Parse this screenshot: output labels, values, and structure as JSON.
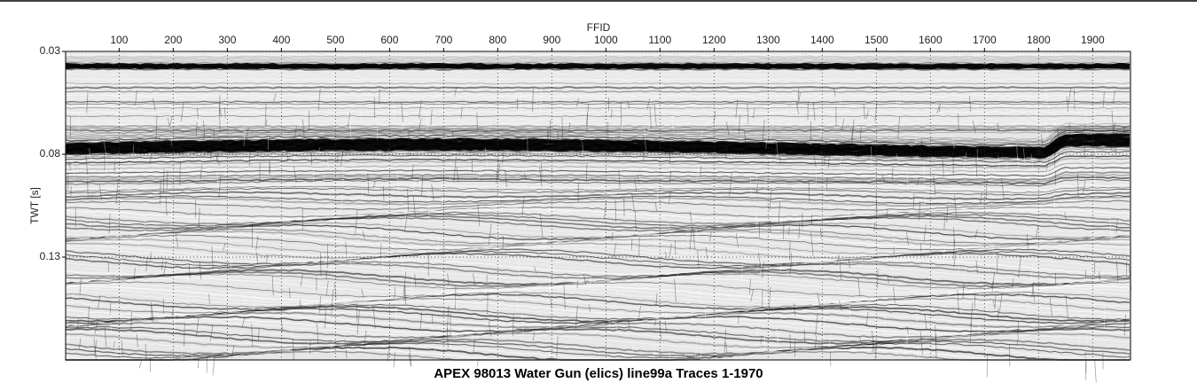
{
  "chart_data": {
    "type": "seismic",
    "title": "APEX 98013 Water Gun (elics) line99a Traces 1-1970",
    "x_label": "FFID",
    "y_label": "TWT [s]",
    "xlim": [
      1,
      1970
    ],
    "xticks": [
      100,
      200,
      300,
      400,
      500,
      600,
      700,
      800,
      900,
      1000,
      1100,
      1200,
      1300,
      1400,
      1500,
      1600,
      1700,
      1800,
      1900
    ],
    "ylim": [
      0.03,
      0.18
    ],
    "yticks": [
      0.03,
      0.08,
      0.13
    ],
    "grid": true
  }
}
